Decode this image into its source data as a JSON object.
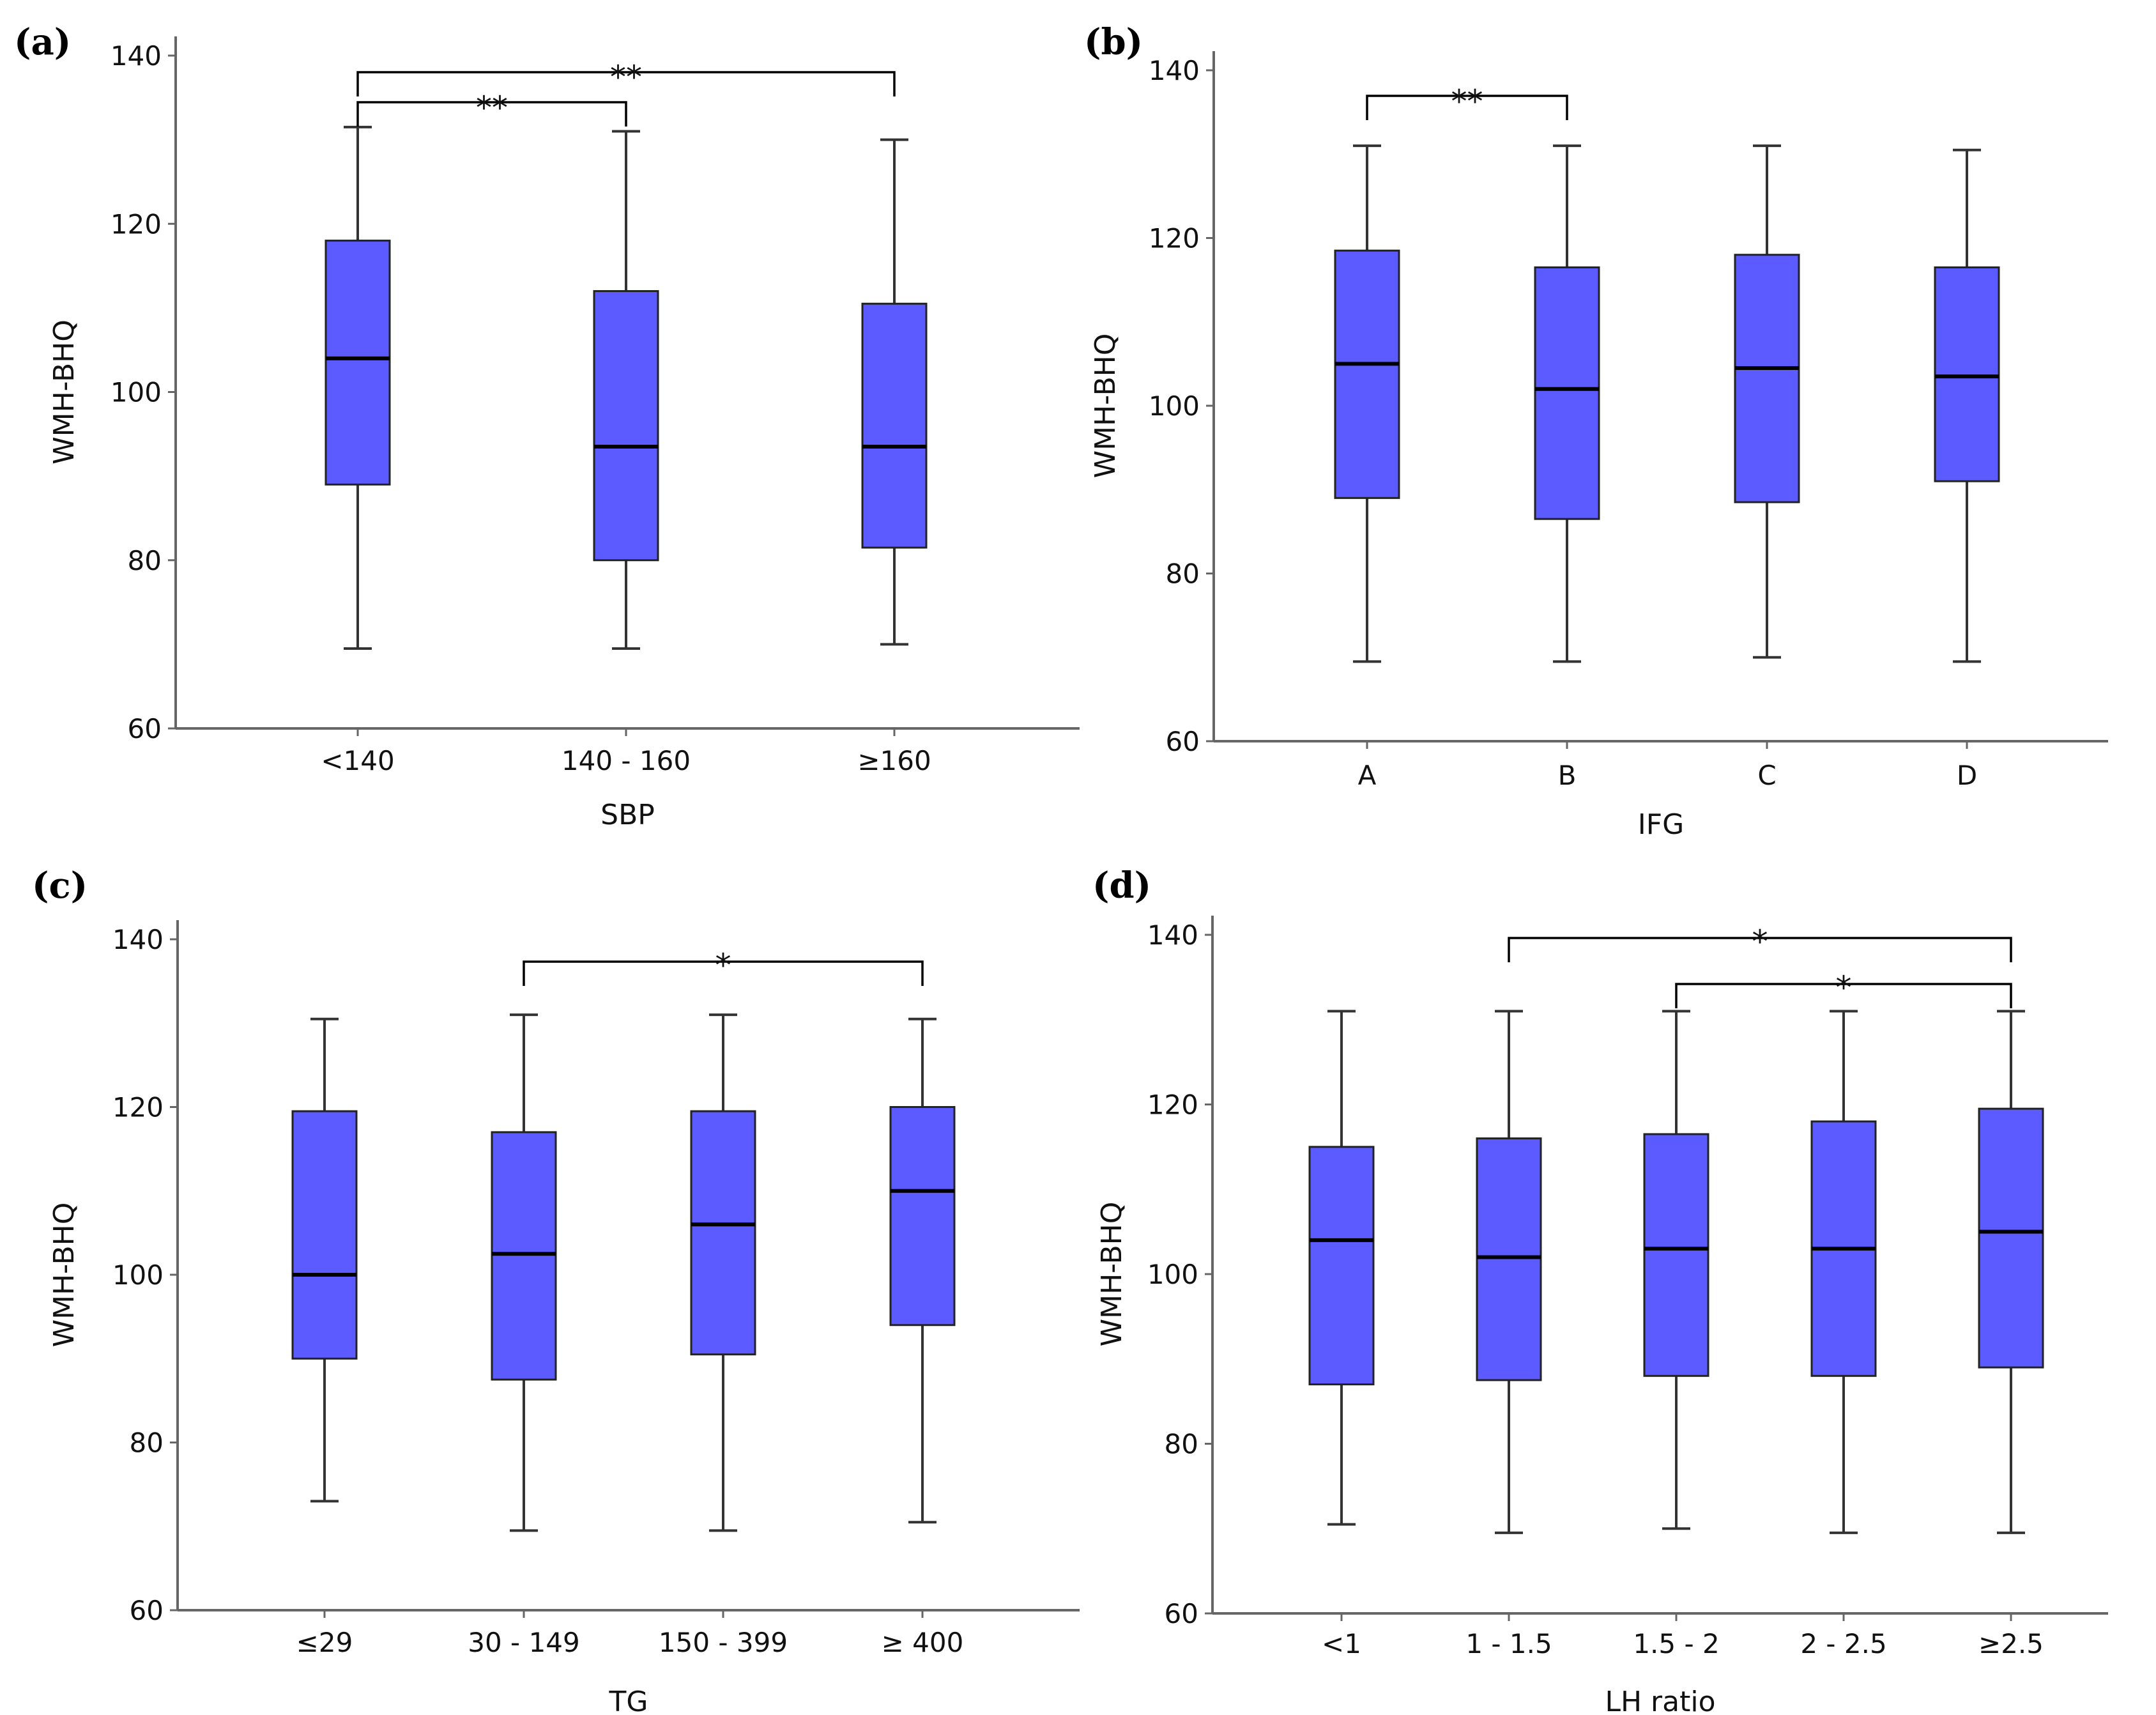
{
  "chart_data": [
    {
      "panel": "(a)",
      "type": "box",
      "xlabel": "SBP",
      "ylabel": "WMH-BHQ",
      "ylim": [
        60,
        140
      ],
      "yticks": [
        "60",
        "80",
        "100",
        "120",
        "140"
      ],
      "categories": [
        "<140",
        "140 - 160",
        "≥160"
      ],
      "boxes": [
        {
          "min": 69.5,
          "q1": 89,
          "median": 104,
          "q3": 118,
          "max": 131.5
        },
        {
          "min": 69.5,
          "q1": 80,
          "median": 93.5,
          "q3": 112,
          "max": 131
        },
        {
          "min": 70,
          "q1": 81.5,
          "median": 93.5,
          "q3": 110.5,
          "max": 130
        }
      ],
      "significance": [
        {
          "from": 0,
          "to": 1,
          "label": "**"
        },
        {
          "from": 0,
          "to": 2,
          "label": "**"
        }
      ]
    },
    {
      "panel": "(b)",
      "type": "box",
      "xlabel": "IFG",
      "ylabel": "WMH-BHQ",
      "ylim": [
        60,
        140
      ],
      "yticks": [
        "60",
        "80",
        "100",
        "120",
        "140"
      ],
      "categories": [
        "A",
        "B",
        "C",
        "D"
      ],
      "boxes": [
        {
          "min": 69.5,
          "q1": 89,
          "median": 105,
          "q3": 118.5,
          "max": 131
        },
        {
          "min": 69.5,
          "q1": 86.5,
          "median": 102,
          "q3": 116.5,
          "max": 131
        },
        {
          "min": 70,
          "q1": 88.5,
          "median": 104.5,
          "q3": 118,
          "max": 131
        },
        {
          "min": 69.5,
          "q1": 91,
          "median": 103.5,
          "q3": 116.5,
          "max": 130.5
        }
      ],
      "significance": [
        {
          "from": 0,
          "to": 1,
          "label": "**"
        }
      ]
    },
    {
      "panel": "(c)",
      "type": "box",
      "xlabel": "TG",
      "ylabel": "WMH-BHQ",
      "ylim": [
        60,
        140
      ],
      "yticks": [
        "60",
        "80",
        "100",
        "120",
        "140"
      ],
      "categories": [
        "≤29",
        "30 - 149",
        "150 - 399",
        "≥ 400"
      ],
      "boxes": [
        {
          "min": 73,
          "q1": 90,
          "median": 100,
          "q3": 119.5,
          "max": 130.5
        },
        {
          "min": 69.5,
          "q1": 87.5,
          "median": 102.5,
          "q3": 117,
          "max": 131
        },
        {
          "min": 69.5,
          "q1": 90.5,
          "median": 106,
          "q3": 119.5,
          "max": 131
        },
        {
          "min": 70.5,
          "q1": 94,
          "median": 110,
          "q3": 120,
          "max": 130.5
        }
      ],
      "significance": [
        {
          "from": 1,
          "to": 3,
          "label": "*"
        }
      ]
    },
    {
      "panel": "(d)",
      "type": "box",
      "xlabel": "LH ratio",
      "ylabel": "WMH-BHQ",
      "ylim": [
        60,
        140
      ],
      "yticks": [
        "60",
        "80",
        "100",
        "120",
        "140"
      ],
      "categories": [
        "<1",
        "1 - 1.5",
        "1.5 - 2",
        "2 - 2.5",
        "≥2.5"
      ],
      "boxes": [
        {
          "min": 70.5,
          "q1": 87,
          "median": 104,
          "q3": 115,
          "max": 131
        },
        {
          "min": 69.5,
          "q1": 87.5,
          "median": 102,
          "q3": 116,
          "max": 131
        },
        {
          "min": 70,
          "q1": 88,
          "median": 103,
          "q3": 116.5,
          "max": 131
        },
        {
          "min": 69.5,
          "q1": 88,
          "median": 103,
          "q3": 118,
          "max": 131
        },
        {
          "min": 69.5,
          "q1": 89,
          "median": 105,
          "q3": 119.5,
          "max": 131
        }
      ],
      "significance": [
        {
          "from": 1,
          "to": 4,
          "label": "*"
        },
        {
          "from": 2,
          "to": 4,
          "label": "*"
        }
      ]
    }
  ]
}
